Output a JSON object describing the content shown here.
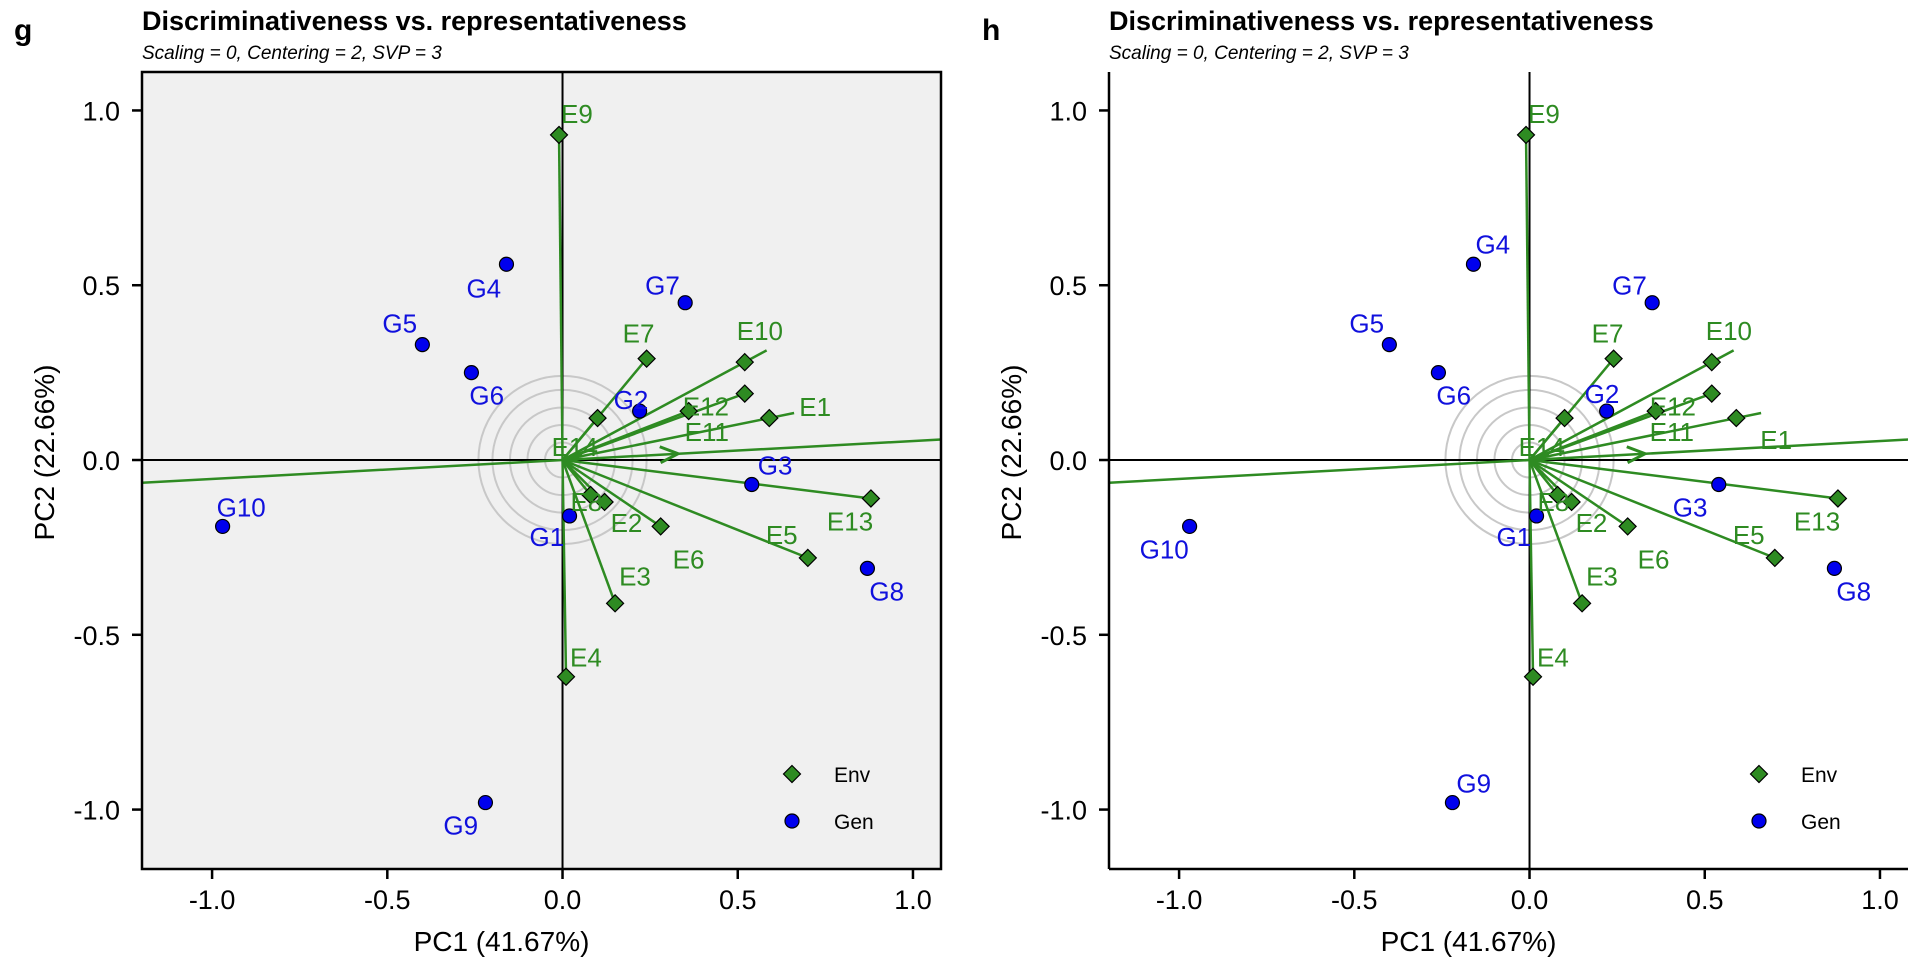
{
  "chart_data": [
    {
      "type": "scatter",
      "panel": "g",
      "title": "Discriminativeness vs. representativeness",
      "subtitle": "Scaling = 0, Centering = 2, SVP = 3",
      "xlabel": "PC1 (41.67%)",
      "ylabel": "PC2 (22.66%)",
      "xlim": [
        -1.2,
        1.08
      ],
      "ylim": [
        -1.17,
        1.11
      ],
      "xticks": [
        -1.0,
        -0.5,
        0.0,
        0.5,
        1.0
      ],
      "yticks": [
        -1.0,
        -0.5,
        0.0,
        0.5,
        1.0
      ],
      "xtick_labels": [
        "-1.0",
        "-0.5",
        "0.0",
        "0.5",
        "1.0"
      ],
      "ytick_labels": [
        "-1.0",
        "-0.5",
        "0.0",
        "0.5",
        "1.0"
      ],
      "background": "#f0f0f0",
      "grid": false,
      "legend_position": "bottom-right",
      "series": [
        {
          "name": "Env",
          "color": "#2e8b22",
          "marker": "diamond",
          "points": [
            {
              "label": "E1",
              "x": 0.59,
              "y": 0.12
            },
            {
              "label": "E2",
              "x": 0.12,
              "y": -0.12
            },
            {
              "label": "E3",
              "x": 0.15,
              "y": -0.41
            },
            {
              "label": "E4",
              "x": 0.01,
              "y": -0.62
            },
            {
              "label": "E5",
              "x": 0.7,
              "y": -0.28
            },
            {
              "label": "E6",
              "x": 0.28,
              "y": -0.19
            },
            {
              "label": "E7",
              "x": 0.24,
              "y": 0.29
            },
            {
              "label": "E8",
              "x": 0.08,
              "y": -0.1
            },
            {
              "label": "E9",
              "x": -0.01,
              "y": 0.93
            },
            {
              "label": "E10",
              "x": 0.52,
              "y": 0.28
            },
            {
              "label": "E11",
              "x": 0.36,
              "y": 0.14
            },
            {
              "label": "E12",
              "x": 0.52,
              "y": 0.19
            },
            {
              "label": "E13",
              "x": 0.88,
              "y": -0.11
            },
            {
              "label": "E14",
              "x": 0.1,
              "y": 0.12
            }
          ]
        },
        {
          "name": "Gen",
          "color": "#0000ee",
          "marker": "circle",
          "points": [
            {
              "label": "G1",
              "x": 0.02,
              "y": -0.16
            },
            {
              "label": "G2",
              "x": 0.22,
              "y": 0.14
            },
            {
              "label": "G3",
              "x": 0.54,
              "y": -0.07
            },
            {
              "label": "G4",
              "x": -0.16,
              "y": 0.56
            },
            {
              "label": "G5",
              "x": -0.4,
              "y": 0.33
            },
            {
              "label": "G6",
              "x": -0.26,
              "y": 0.25
            },
            {
              "label": "G7",
              "x": 0.35,
              "y": 0.45
            },
            {
              "label": "G8",
              "x": 0.87,
              "y": -0.31
            },
            {
              "label": "G9",
              "x": -0.22,
              "y": -0.98
            },
            {
              "label": "G10",
              "x": -0.97,
              "y": -0.19
            }
          ]
        }
      ],
      "average_environment_axis": {
        "x": 0.94,
        "y": 0.051
      },
      "concentric_circle_radii": [
        0.05,
        0.1,
        0.15,
        0.2,
        0.24
      ]
    },
    {
      "type": "scatter",
      "panel": "h",
      "title": "Discriminativeness vs. representativeness",
      "subtitle": "Scaling = 0, Centering = 2, SVP = 3",
      "xlabel": "PC1 (41.67%)",
      "ylabel": "PC2 (22.66%)",
      "xlim": [
        -1.2,
        1.08
      ],
      "ylim": [
        -1.17,
        1.11
      ],
      "xticks": [
        -1.0,
        -0.5,
        0.0,
        0.5,
        1.0
      ],
      "yticks": [
        -1.0,
        -0.5,
        0.0,
        0.5,
        1.0
      ],
      "xtick_labels": [
        "-1.0",
        "-0.5",
        "0.0",
        "0.5",
        "1.0"
      ],
      "ytick_labels": [
        "-1.0",
        "-0.5",
        "0.0",
        "0.5",
        "1.0"
      ],
      "background": "#ffffff",
      "grid": false,
      "legend_position": "bottom-right",
      "series": [
        {
          "name": "Env",
          "color": "#2e8b22",
          "marker": "diamond",
          "points": [
            {
              "label": "E1",
              "x": 0.59,
              "y": 0.12
            },
            {
              "label": "E2",
              "x": 0.12,
              "y": -0.12
            },
            {
              "label": "E3",
              "x": 0.15,
              "y": -0.41
            },
            {
              "label": "E4",
              "x": 0.01,
              "y": -0.62
            },
            {
              "label": "E5",
              "x": 0.7,
              "y": -0.28
            },
            {
              "label": "E6",
              "x": 0.28,
              "y": -0.19
            },
            {
              "label": "E7",
              "x": 0.24,
              "y": 0.29
            },
            {
              "label": "E8",
              "x": 0.08,
              "y": -0.1
            },
            {
              "label": "E9",
              "x": -0.01,
              "y": 0.93
            },
            {
              "label": "E10",
              "x": 0.52,
              "y": 0.28
            },
            {
              "label": "E11",
              "x": 0.36,
              "y": 0.14
            },
            {
              "label": "E12",
              "x": 0.52,
              "y": 0.19
            },
            {
              "label": "E13",
              "x": 0.88,
              "y": -0.11
            },
            {
              "label": "E14",
              "x": 0.1,
              "y": 0.12
            }
          ]
        },
        {
          "name": "Gen",
          "color": "#0000ee",
          "marker": "circle",
          "points": [
            {
              "label": "G1",
              "x": 0.02,
              "y": -0.16
            },
            {
              "label": "G2",
              "x": 0.22,
              "y": 0.14
            },
            {
              "label": "G3",
              "x": 0.54,
              "y": -0.07
            },
            {
              "label": "G4",
              "x": -0.16,
              "y": 0.56
            },
            {
              "label": "G5",
              "x": -0.4,
              "y": 0.33
            },
            {
              "label": "G6",
              "x": -0.26,
              "y": 0.25
            },
            {
              "label": "G7",
              "x": 0.35,
              "y": 0.45
            },
            {
              "label": "G8",
              "x": 0.87,
              "y": -0.31
            },
            {
              "label": "G9",
              "x": -0.22,
              "y": -0.98
            },
            {
              "label": "G10",
              "x": -0.97,
              "y": -0.19
            }
          ]
        }
      ],
      "average_environment_axis": {
        "x": 0.94,
        "y": 0.051
      },
      "concentric_circle_radii": [
        0.05,
        0.1,
        0.15,
        0.2,
        0.24
      ]
    }
  ]
}
